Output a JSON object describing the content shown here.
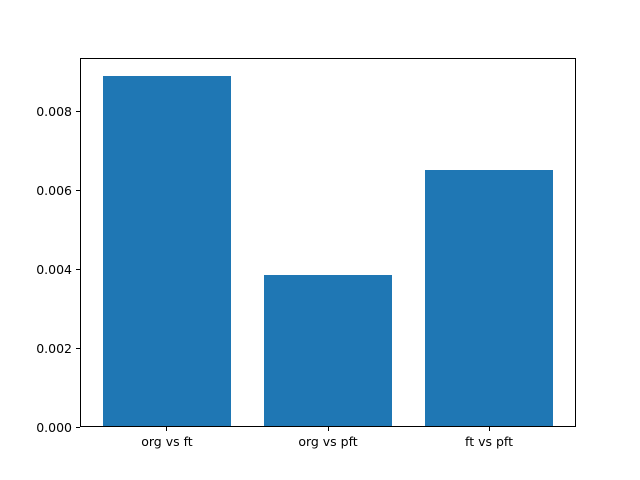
{
  "figure": {
    "background_color": "#ffffff",
    "spine_color": "#000000",
    "tick_label_color": "#000000"
  },
  "chart_data": {
    "type": "bar",
    "categories": [
      "org vs ft",
      "org vs pft",
      "ft vs pft"
    ],
    "values": [
      0.0089,
      0.00385,
      0.0065
    ],
    "title": "",
    "xlabel": "",
    "ylabel": "",
    "ylim": [
      0,
      0.009345
    ],
    "yticks": [
      0,
      0.002,
      0.004,
      0.006,
      0.008
    ],
    "yticklabels": [
      "0.000",
      "0.002",
      "0.004",
      "0.006",
      "0.008"
    ],
    "bar_color": "#1f77b4",
    "bar_width_fraction": 0.8,
    "grid": false,
    "legend": null
  }
}
